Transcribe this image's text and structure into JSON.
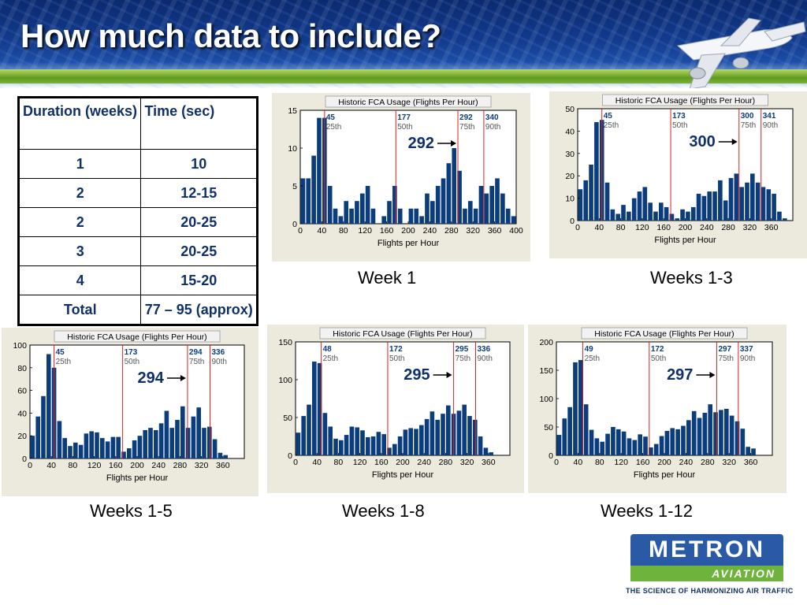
{
  "slide": {
    "title": "How much data to include?",
    "logo": {
      "name": "METRON",
      "sub": "AVIATION",
      "tagline": "THE SCIENCE OF HARMONIZING AIR TRAFFIC"
    }
  },
  "table": {
    "headers": [
      "Duration (weeks)",
      "Time (sec)"
    ],
    "rows": [
      [
        "1",
        "10"
      ],
      [
        "2",
        "12-15"
      ],
      [
        "2",
        "20-25"
      ],
      [
        "3",
        "20-25"
      ],
      [
        "4",
        "15-20"
      ],
      [
        "Total",
        "77 – 95 (approx)"
      ]
    ]
  },
  "chart_data": [
    {
      "type": "bar",
      "title": "Historic FCA Usage (Flights Per Hour)",
      "xlabel": "Flights per Hour",
      "caption": "Week 1",
      "callout": "292",
      "xlim": [
        0,
        400
      ],
      "ylim": [
        0,
        15
      ],
      "xticks": [
        0,
        40,
        80,
        120,
        160,
        200,
        240,
        280,
        320,
        360,
        400
      ],
      "yticks": [
        0,
        5,
        10,
        15
      ],
      "bin_width": 10,
      "values": [
        6,
        6,
        9,
        14,
        14,
        5,
        2,
        1,
        3,
        2,
        3,
        4,
        5,
        2,
        0,
        1,
        3,
        5,
        2,
        0,
        2,
        2,
        1,
        4,
        3,
        5,
        6,
        8,
        10,
        7,
        2,
        3,
        2,
        5,
        4,
        5,
        6,
        4,
        2,
        1
      ],
      "percentiles": [
        {
          "value": 45,
          "label": "25th",
          "x": 45
        },
        {
          "value": 177,
          "label": "50th",
          "x": 177
        },
        {
          "value": 292,
          "label": "75th",
          "x": 292
        },
        {
          "value": 340,
          "label": "90th",
          "x": 340
        }
      ],
      "grid": false
    },
    {
      "type": "bar",
      "title": "Historic FCA Usage (Flights Per Hour)",
      "xlabel": "Flights per Hour",
      "caption": "Weeks 1-3",
      "callout": "300",
      "xlim": [
        0,
        400
      ],
      "ylim": [
        0,
        50
      ],
      "xticks": [
        0,
        40,
        80,
        120,
        160,
        200,
        240,
        280,
        320,
        360
      ],
      "yticks": [
        0,
        10,
        20,
        30,
        40,
        50
      ],
      "bin_width": 10,
      "values": [
        14,
        18,
        25,
        44,
        45,
        17,
        5,
        3,
        7,
        4,
        10,
        13,
        15,
        8,
        4,
        8,
        6,
        3,
        1,
        5,
        4,
        6,
        12,
        11,
        13,
        13,
        18,
        9,
        19,
        21,
        15,
        17,
        21,
        17,
        15,
        14,
        12,
        4,
        1,
        0
      ],
      "percentiles": [
        {
          "value": 45,
          "label": "25th",
          "x": 45
        },
        {
          "value": 173,
          "label": "50th",
          "x": 173
        },
        {
          "value": 300,
          "label": "75th",
          "x": 300
        },
        {
          "value": 341,
          "label": "90th",
          "x": 341
        }
      ],
      "grid": false
    },
    {
      "type": "bar",
      "title": "Historic FCA Usage (Flights Per Hour)",
      "xlabel": "Flights per Hour",
      "caption": "Weeks 1-5",
      "callout": "294",
      "xlim": [
        0,
        400
      ],
      "ylim": [
        0,
        100
      ],
      "xticks": [
        0,
        40,
        80,
        120,
        160,
        200,
        240,
        280,
        320,
        360
      ],
      "yticks": [
        0,
        20,
        40,
        60,
        80,
        100
      ],
      "bin_width": 10,
      "values": [
        20,
        37,
        55,
        92,
        80,
        33,
        18,
        11,
        14,
        12,
        22,
        24,
        23,
        18,
        15,
        19,
        19,
        6,
        9,
        16,
        20,
        25,
        27,
        25,
        31,
        42,
        27,
        34,
        46,
        27,
        37,
        45,
        27,
        28,
        17,
        5,
        3,
        0,
        0,
        0
      ],
      "percentiles": [
        {
          "value": 45,
          "label": "25th",
          "x": 45
        },
        {
          "value": 173,
          "label": "50th",
          "x": 173
        },
        {
          "value": 294,
          "label": "75th",
          "x": 294
        },
        {
          "value": 336,
          "label": "90th",
          "x": 336
        }
      ],
      "grid": false
    },
    {
      "type": "bar",
      "title": "Historic FCA Usage (Flights Per Hour)",
      "xlabel": "Flights per Hour",
      "caption": "Weeks 1-8",
      "callout": "295",
      "xlim": [
        0,
        400
      ],
      "ylim": [
        0,
        150
      ],
      "xticks": [
        0,
        40,
        80,
        120,
        160,
        200,
        240,
        280,
        320,
        360
      ],
      "yticks": [
        0,
        50,
        100,
        150
      ],
      "bin_width": 10,
      "values": [
        30,
        52,
        67,
        124,
        122,
        56,
        38,
        22,
        20,
        27,
        38,
        37,
        33,
        24,
        25,
        31,
        28,
        10,
        15,
        25,
        34,
        36,
        35,
        40,
        48,
        58,
        47,
        55,
        66,
        55,
        59,
        67,
        52,
        47,
        25,
        10,
        4,
        0,
        0,
        0
      ],
      "percentiles": [
        {
          "value": 48,
          "label": "25th",
          "x": 48
        },
        {
          "value": 172,
          "label": "50th",
          "x": 172
        },
        {
          "value": 295,
          "label": "75th",
          "x": 295
        },
        {
          "value": 336,
          "label": "90th",
          "x": 336
        }
      ],
      "grid": false
    },
    {
      "type": "bar",
      "title": "Historic FCA Usage (Flights Per Hour)",
      "xlabel": "Flights per Hour",
      "caption": "Weeks 1-12",
      "callout": "297",
      "xlim": [
        0,
        400
      ],
      "ylim": [
        0,
        200
      ],
      "xticks": [
        0,
        40,
        80,
        120,
        160,
        200,
        240,
        280,
        320,
        360
      ],
      "yticks": [
        0,
        50,
        100,
        150,
        200
      ],
      "bin_width": 10,
      "values": [
        36,
        65,
        85,
        164,
        168,
        90,
        45,
        30,
        24,
        38,
        50,
        46,
        42,
        30,
        27,
        37,
        33,
        14,
        20,
        34,
        43,
        48,
        46,
        52,
        62,
        78,
        66,
        75,
        90,
        76,
        80,
        82,
        70,
        60,
        47,
        15,
        12,
        0,
        0,
        0
      ],
      "percentiles": [
        {
          "value": 49,
          "label": "25th",
          "x": 49
        },
        {
          "value": 172,
          "label": "50th",
          "x": 172
        },
        {
          "value": 297,
          "label": "75th",
          "x": 297
        },
        {
          "value": 337,
          "label": "90th",
          "x": 337
        }
      ],
      "grid": false
    }
  ]
}
